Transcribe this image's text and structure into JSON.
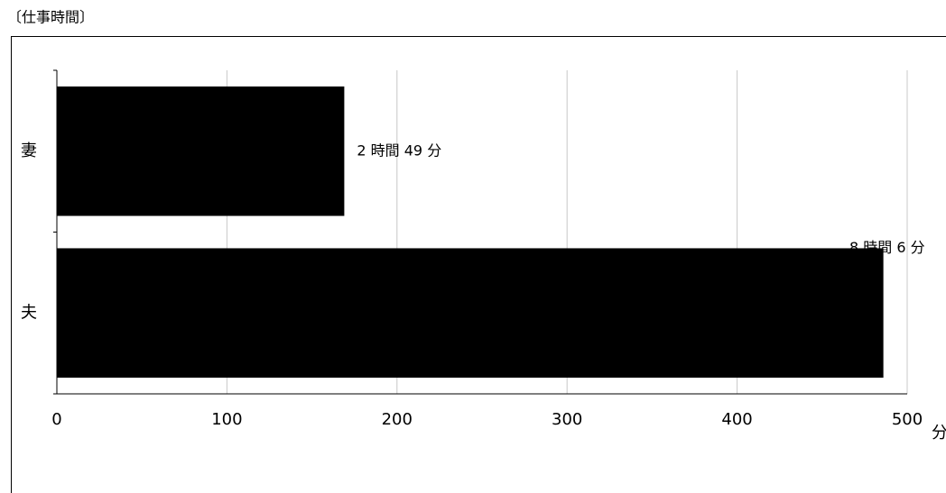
{
  "chart_data": {
    "type": "barh",
    "title": "〔仕事時間〕",
    "categories": [
      "妻",
      "夫"
    ],
    "values": [
      169,
      486
    ],
    "value_labels": [
      "2 時間 49 分",
      "8 時間 6 分"
    ],
    "color": "#000000",
    "xlim": [
      0,
      500
    ],
    "xticks": [
      0,
      100,
      200,
      300,
      400,
      500
    ],
    "xlabel": "分",
    "grid": true
  }
}
